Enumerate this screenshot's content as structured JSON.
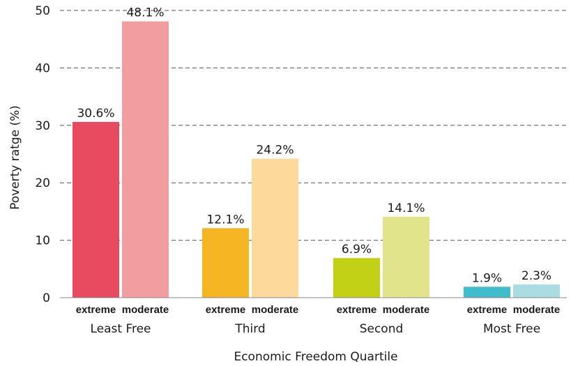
{
  "chart_data": {
    "type": "bar",
    "title": "",
    "xlabel": "Economic Freedom Quartile",
    "ylabel": "Poverty ratge (%)",
    "ylim": [
      0,
      50
    ],
    "yticks": [
      0,
      10,
      20,
      30,
      40,
      50
    ],
    "grid": true,
    "categories": [
      "Least Free",
      "Third",
      "Second",
      "Most Free"
    ],
    "sub_labels": [
      "extreme",
      "moderate"
    ],
    "series": [
      {
        "name": "extreme",
        "values": [
          30.6,
          12.1,
          6.9,
          1.9
        ],
        "labels": [
          "30.6%",
          "12.1%",
          "6.9%",
          "1.9%"
        ]
      },
      {
        "name": "moderate",
        "values": [
          48.1,
          24.2,
          14.1,
          2.3
        ],
        "labels": [
          "48.1%",
          "24.2%",
          "14.1%",
          "2.3%"
        ]
      }
    ],
    "colors": {
      "extreme": [
        "#e84b5f",
        "#f6b623",
        "#c3d116",
        "#40bccb"
      ],
      "moderate": [
        "#f39e9e",
        "#fed99c",
        "#e2e48b",
        "#a9dde2"
      ],
      "grid": "#555555",
      "text": "#1a1a1a"
    }
  }
}
